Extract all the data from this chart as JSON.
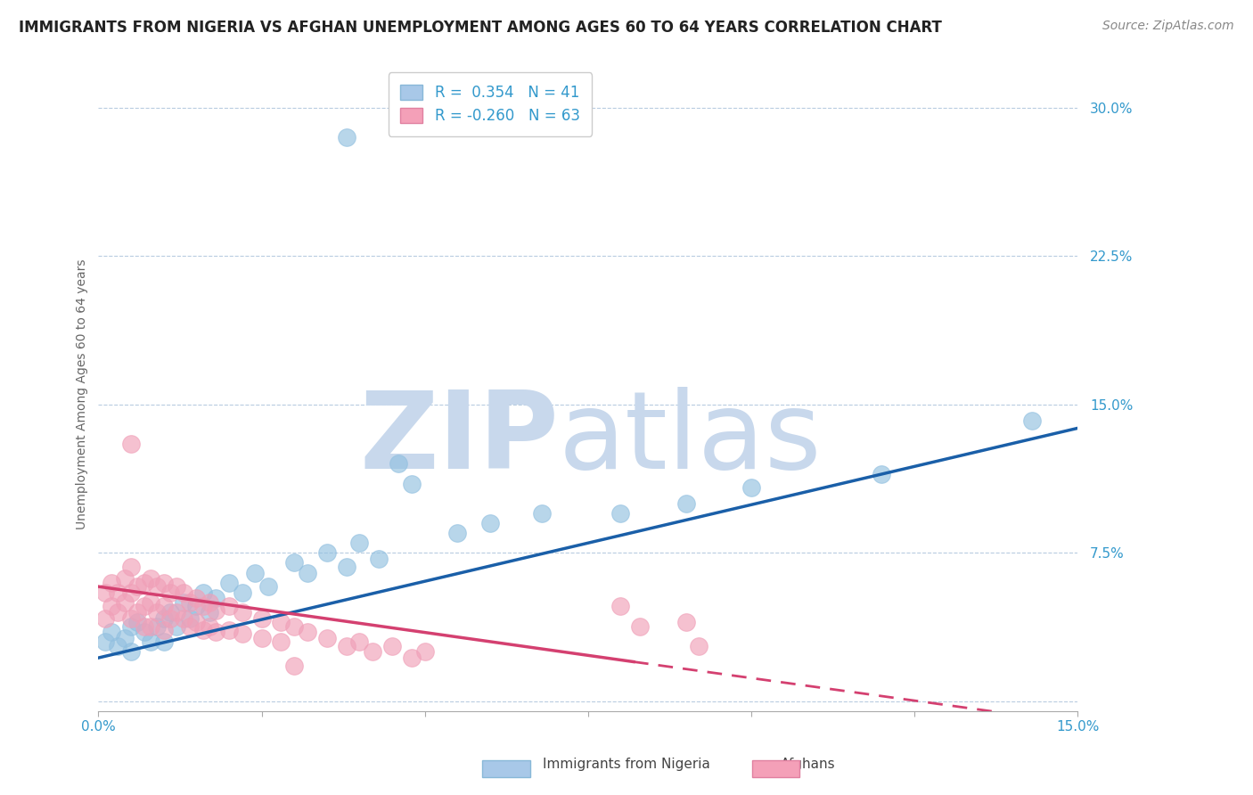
{
  "title": "IMMIGRANTS FROM NIGERIA VS AFGHAN UNEMPLOYMENT AMONG AGES 60 TO 64 YEARS CORRELATION CHART",
  "source_text": "Source: ZipAtlas.com",
  "ylabel": "Unemployment Among Ages 60 to 64 years",
  "xlim": [
    0.0,
    0.15
  ],
  "ylim": [
    -0.005,
    0.315
  ],
  "yticks": [
    0.0,
    0.075,
    0.15,
    0.225,
    0.3
  ],
  "ytick_labels": [
    "",
    "7.5%",
    "15.0%",
    "22.5%",
    "30.0%"
  ],
  "xticks": [
    0.0,
    0.025,
    0.05,
    0.075,
    0.1,
    0.125,
    0.15
  ],
  "xtick_labels": [
    "0.0%",
    "",
    "",
    "",
    "",
    "",
    "15.0%"
  ],
  "nigeria_color": "#92c0e0",
  "afghan_color": "#f0a0b8",
  "nigeria_line_color": "#1a5fa8",
  "afghan_line_color": "#d44070",
  "nigeria_scatter": [
    [
      0.001,
      0.03
    ],
    [
      0.002,
      0.035
    ],
    [
      0.003,
      0.028
    ],
    [
      0.004,
      0.032
    ],
    [
      0.005,
      0.038
    ],
    [
      0.005,
      0.025
    ],
    [
      0.006,
      0.04
    ],
    [
      0.007,
      0.035
    ],
    [
      0.008,
      0.03
    ],
    [
      0.009,
      0.038
    ],
    [
      0.01,
      0.042
    ],
    [
      0.01,
      0.03
    ],
    [
      0.011,
      0.045
    ],
    [
      0.012,
      0.038
    ],
    [
      0.013,
      0.05
    ],
    [
      0.014,
      0.042
    ],
    [
      0.015,
      0.048
    ],
    [
      0.016,
      0.055
    ],
    [
      0.017,
      0.045
    ],
    [
      0.018,
      0.052
    ],
    [
      0.02,
      0.06
    ],
    [
      0.022,
      0.055
    ],
    [
      0.024,
      0.065
    ],
    [
      0.026,
      0.058
    ],
    [
      0.03,
      0.07
    ],
    [
      0.032,
      0.065
    ],
    [
      0.035,
      0.075
    ],
    [
      0.038,
      0.068
    ],
    [
      0.04,
      0.08
    ],
    [
      0.043,
      0.072
    ],
    [
      0.046,
      0.12
    ],
    [
      0.048,
      0.11
    ],
    [
      0.055,
      0.085
    ],
    [
      0.06,
      0.09
    ],
    [
      0.068,
      0.095
    ],
    [
      0.08,
      0.095
    ],
    [
      0.09,
      0.1
    ],
    [
      0.1,
      0.108
    ],
    [
      0.12,
      0.115
    ],
    [
      0.143,
      0.142
    ],
    [
      0.038,
      0.285
    ]
  ],
  "afghan_scatter": [
    [
      0.001,
      0.055
    ],
    [
      0.001,
      0.042
    ],
    [
      0.002,
      0.06
    ],
    [
      0.002,
      0.048
    ],
    [
      0.003,
      0.055
    ],
    [
      0.003,
      0.045
    ],
    [
      0.004,
      0.062
    ],
    [
      0.004,
      0.05
    ],
    [
      0.005,
      0.068
    ],
    [
      0.005,
      0.055
    ],
    [
      0.005,
      0.042
    ],
    [
      0.006,
      0.058
    ],
    [
      0.006,
      0.045
    ],
    [
      0.007,
      0.06
    ],
    [
      0.007,
      0.048
    ],
    [
      0.007,
      0.038
    ],
    [
      0.008,
      0.062
    ],
    [
      0.008,
      0.05
    ],
    [
      0.008,
      0.038
    ],
    [
      0.009,
      0.058
    ],
    [
      0.009,
      0.045
    ],
    [
      0.01,
      0.06
    ],
    [
      0.01,
      0.048
    ],
    [
      0.01,
      0.036
    ],
    [
      0.011,
      0.055
    ],
    [
      0.011,
      0.042
    ],
    [
      0.012,
      0.058
    ],
    [
      0.012,
      0.045
    ],
    [
      0.013,
      0.055
    ],
    [
      0.013,
      0.042
    ],
    [
      0.014,
      0.05
    ],
    [
      0.014,
      0.038
    ],
    [
      0.015,
      0.052
    ],
    [
      0.015,
      0.04
    ],
    [
      0.016,
      0.048
    ],
    [
      0.016,
      0.036
    ],
    [
      0.017,
      0.05
    ],
    [
      0.017,
      0.038
    ],
    [
      0.018,
      0.046
    ],
    [
      0.018,
      0.035
    ],
    [
      0.02,
      0.048
    ],
    [
      0.02,
      0.036
    ],
    [
      0.022,
      0.045
    ],
    [
      0.022,
      0.034
    ],
    [
      0.025,
      0.042
    ],
    [
      0.025,
      0.032
    ],
    [
      0.028,
      0.04
    ],
    [
      0.028,
      0.03
    ],
    [
      0.03,
      0.038
    ],
    [
      0.032,
      0.035
    ],
    [
      0.035,
      0.032
    ],
    [
      0.038,
      0.028
    ],
    [
      0.04,
      0.03
    ],
    [
      0.042,
      0.025
    ],
    [
      0.045,
      0.028
    ],
    [
      0.048,
      0.022
    ],
    [
      0.05,
      0.025
    ],
    [
      0.005,
      0.13
    ],
    [
      0.08,
      0.048
    ],
    [
      0.083,
      0.038
    ],
    [
      0.09,
      0.04
    ],
    [
      0.092,
      0.028
    ],
    [
      0.03,
      0.018
    ]
  ],
  "nigeria_line": {
    "x0": 0.0,
    "x1": 0.15,
    "y0": 0.022,
    "y1": 0.138
  },
  "afghan_line_solid": {
    "x0": 0.0,
    "x1": 0.082,
    "y0": 0.058,
    "y1": 0.02
  },
  "afghan_line_dash": {
    "x0": 0.082,
    "x1": 0.15,
    "y0": 0.02,
    "y1": -0.011
  },
  "watermark_zip": "ZIP",
  "watermark_atlas": "atlas",
  "watermark_color": "#c8d8ec",
  "background_color": "#ffffff",
  "title_fontsize": 12,
  "axis_label_fontsize": 10,
  "tick_fontsize": 11,
  "legend_fontsize": 12
}
